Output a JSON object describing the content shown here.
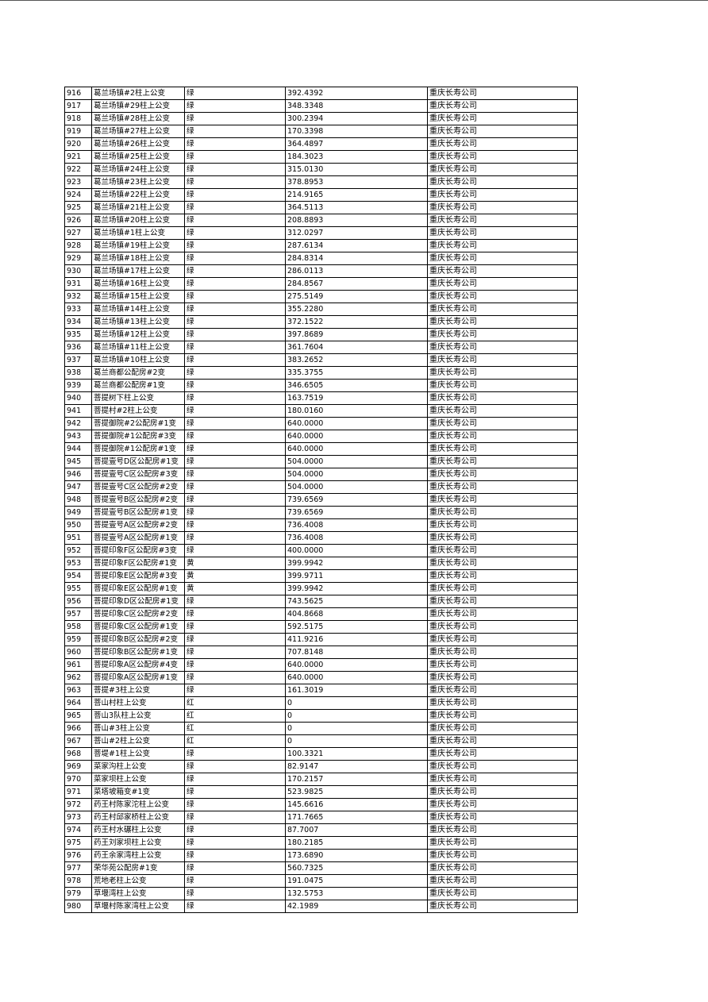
{
  "company": "重庆长寿公司",
  "rows": [
    [
      "916",
      "葛兰场镇#2柱上公变",
      "绿",
      "392.4392",
      "重庆长寿公司"
    ],
    [
      "917",
      "葛兰场镇#29柱上公变",
      "绿",
      "348.3348",
      "重庆长寿公司"
    ],
    [
      "918",
      "葛兰场镇#28柱上公变",
      "绿",
      "300.2394",
      "重庆长寿公司"
    ],
    [
      "919",
      "葛兰场镇#27柱上公变",
      "绿",
      "170.3398",
      "重庆长寿公司"
    ],
    [
      "920",
      "葛兰场镇#26柱上公变",
      "绿",
      "364.4897",
      "重庆长寿公司"
    ],
    [
      "921",
      "葛兰场镇#25柱上公变",
      "绿",
      "184.3023",
      "重庆长寿公司"
    ],
    [
      "922",
      "葛兰场镇#24柱上公变",
      "绿",
      "315.0130",
      "重庆长寿公司"
    ],
    [
      "923",
      "葛兰场镇#23柱上公变",
      "绿",
      "378.8953",
      "重庆长寿公司"
    ],
    [
      "924",
      "葛兰场镇#22柱上公变",
      "绿",
      "214.9165",
      "重庆长寿公司"
    ],
    [
      "925",
      "葛兰场镇#21柱上公变",
      "绿",
      "364.5113",
      "重庆长寿公司"
    ],
    [
      "926",
      "葛兰场镇#20柱上公变",
      "绿",
      "208.8893",
      "重庆长寿公司"
    ],
    [
      "927",
      "葛兰场镇#1柱上公变",
      "绿",
      "312.0297",
      "重庆长寿公司"
    ],
    [
      "928",
      "葛兰场镇#19柱上公变",
      "绿",
      "287.6134",
      "重庆长寿公司"
    ],
    [
      "929",
      "葛兰场镇#18柱上公变",
      "绿",
      "284.8314",
      "重庆长寿公司"
    ],
    [
      "930",
      "葛兰场镇#17柱上公变",
      "绿",
      "286.0113",
      "重庆长寿公司"
    ],
    [
      "931",
      "葛兰场镇#16柱上公变",
      "绿",
      "284.8567",
      "重庆长寿公司"
    ],
    [
      "932",
      "葛兰场镇#15柱上公变",
      "绿",
      "275.5149",
      "重庆长寿公司"
    ],
    [
      "933",
      "葛兰场镇#14柱上公变",
      "绿",
      "355.2280",
      "重庆长寿公司"
    ],
    [
      "934",
      "葛兰场镇#13柱上公变",
      "绿",
      "372.1522",
      "重庆长寿公司"
    ],
    [
      "935",
      "葛兰场镇#12柱上公变",
      "绿",
      "397.8689",
      "重庆长寿公司"
    ],
    [
      "936",
      "葛兰场镇#11柱上公变",
      "绿",
      "361.7604",
      "重庆长寿公司"
    ],
    [
      "937",
      "葛兰场镇#10柱上公变",
      "绿",
      "383.2652",
      "重庆长寿公司"
    ],
    [
      "938",
      "葛兰商都公配房#2变",
      "绿",
      "335.3755",
      "重庆长寿公司"
    ],
    [
      "939",
      "葛兰商都公配房#1变",
      "绿",
      "346.6505",
      "重庆长寿公司"
    ],
    [
      "940",
      "菩提树下柱上公变",
      "绿",
      "163.7519",
      "重庆长寿公司"
    ],
    [
      "941",
      "菩提村#2柱上公变",
      "绿",
      "180.0160",
      "重庆长寿公司"
    ],
    [
      "942",
      "菩提御院#2公配房#1变",
      "绿",
      "640.0000",
      "重庆长寿公司"
    ],
    [
      "943",
      "菩提御院#1公配房#3变",
      "绿",
      "640.0000",
      "重庆长寿公司"
    ],
    [
      "944",
      "菩提御院#1公配房#1变",
      "绿",
      "640.0000",
      "重庆长寿公司"
    ],
    [
      "945",
      "菩提壹号D区公配房#1变",
      "绿",
      "504.0000",
      "重庆长寿公司"
    ],
    [
      "946",
      "菩提壹号C区公配房#3变",
      "绿",
      "504.0000",
      "重庆长寿公司"
    ],
    [
      "947",
      "菩提壹号C区公配房#2变",
      "绿",
      "504.0000",
      "重庆长寿公司"
    ],
    [
      "948",
      "菩提壹号B区公配房#2变",
      "绿",
      "739.6569",
      "重庆长寿公司"
    ],
    [
      "949",
      "菩提壹号B区公配房#1变",
      "绿",
      "739.6569",
      "重庆长寿公司"
    ],
    [
      "950",
      "菩提壹号A区公配房#2变",
      "绿",
      "736.4008",
      "重庆长寿公司"
    ],
    [
      "951",
      "菩提壹号A区公配房#1变",
      "绿",
      "736.4008",
      "重庆长寿公司"
    ],
    [
      "952",
      "菩提印象F区公配房#3变",
      "绿",
      "400.0000",
      "重庆长寿公司"
    ],
    [
      "953",
      "菩提印象F区公配房#1变",
      "黄",
      "399.9942",
      "重庆长寿公司"
    ],
    [
      "954",
      "菩提印象E区公配房#3变",
      "黄",
      "399.9711",
      "重庆长寿公司"
    ],
    [
      "955",
      "菩提印象E区公配房#1变",
      "黄",
      "399.9942",
      "重庆长寿公司"
    ],
    [
      "956",
      "菩提印象D区公配房#1变",
      "绿",
      "743.5625",
      "重庆长寿公司"
    ],
    [
      "957",
      "菩提印象C区公配房#2变",
      "绿",
      "404.8668",
      "重庆长寿公司"
    ],
    [
      "958",
      "菩提印象C区公配房#1变",
      "绿",
      "592.5175",
      "重庆长寿公司"
    ],
    [
      "959",
      "菩提印象B区公配房#2变",
      "绿",
      "411.9216",
      "重庆长寿公司"
    ],
    [
      "960",
      "菩提印象B区公配房#1变",
      "绿",
      "707.8148",
      "重庆长寿公司"
    ],
    [
      "961",
      "菩提印象A区公配房#4变",
      "绿",
      "640.0000",
      "重庆长寿公司"
    ],
    [
      "962",
      "菩提印象A区公配房#1变",
      "绿",
      "640.0000",
      "重庆长寿公司"
    ],
    [
      "963",
      "菩提#3柱上公变",
      "绿",
      "161.3019",
      "重庆长寿公司"
    ],
    [
      "964",
      "菩山村柱上公变",
      "红",
      "0",
      "重庆长寿公司"
    ],
    [
      "965",
      "菩山3队柱上公变",
      "红",
      "0",
      "重庆长寿公司"
    ],
    [
      "966",
      "菩山#3柱上公变",
      "红",
      "0",
      "重庆长寿公司"
    ],
    [
      "967",
      "菩山#2柱上公变",
      "红",
      "0",
      "重庆长寿公司"
    ],
    [
      "968",
      "菩堤#1柱上公变",
      "绿",
      "100.3321",
      "重庆长寿公司"
    ],
    [
      "969",
      "菜家沟柱上公变",
      "绿",
      "82.9147",
      "重庆长寿公司"
    ],
    [
      "970",
      "菜家坝柱上公变",
      "绿",
      "170.2157",
      "重庆长寿公司"
    ],
    [
      "971",
      "菜塔坡箱变#1变",
      "绿",
      "523.9825",
      "重庆长寿公司"
    ],
    [
      "972",
      "药王村陈家沱柱上公变",
      "绿",
      "145.6616",
      "重庆长寿公司"
    ],
    [
      "973",
      "药王村邱家桥柱上公变",
      "绿",
      "171.7665",
      "重庆长寿公司"
    ],
    [
      "974",
      "药王村水碾柱上公变",
      "绿",
      "87.7007",
      "重庆长寿公司"
    ],
    [
      "975",
      "药王刘家坝柱上公变",
      "绿",
      "180.2185",
      "重庆长寿公司"
    ],
    [
      "976",
      "药王余家湾柱上公变",
      "绿",
      "173.6890",
      "重庆长寿公司"
    ],
    [
      "977",
      "荣华苑公配房#1变",
      "绿",
      "560.7325",
      "重庆长寿公司"
    ],
    [
      "978",
      "荒地老柱上公变",
      "绿",
      "191.0475",
      "重庆长寿公司"
    ],
    [
      "979",
      "草堰湾柱上公变",
      "绿",
      "132.5753",
      "重庆长寿公司"
    ],
    [
      "980",
      "草堰村陈家湾柱上公变",
      "绿",
      "42.1989",
      "重庆长寿公司"
    ]
  ]
}
